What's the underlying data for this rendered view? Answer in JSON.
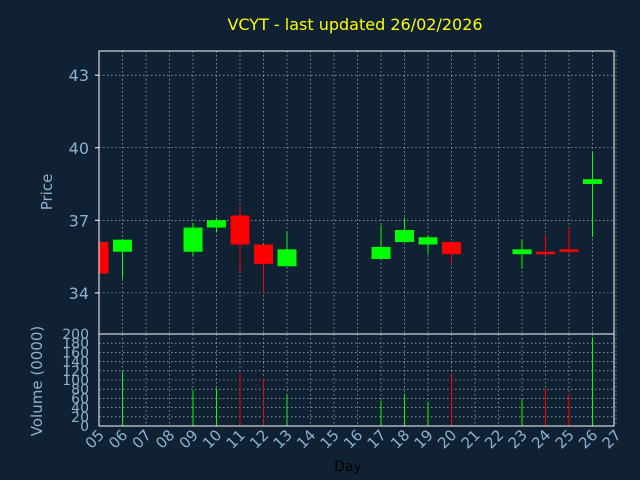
{
  "colors": {
    "background": "#0f2133",
    "frame": "#ffffff",
    "grid": "#ffffff",
    "title": "#ffff00",
    "axis_label": "#8fb0d0",
    "tick_label": "#8fb0d0",
    "x_label": "#000000",
    "up": "#00ff00",
    "down": "#ff0000"
  },
  "chart_data": [
    {
      "type": "candlestick",
      "title": "VCYT - last updated 26/02/2026",
      "ylabel": "Price",
      "ylim": [
        32.3,
        44.0
      ],
      "yticks": [
        34,
        37,
        40,
        43
      ],
      "grid": true,
      "x_ticks": [
        "05",
        "06",
        "07",
        "08",
        "09",
        "10",
        "11",
        "12",
        "13",
        "14",
        "15",
        "16",
        "17",
        "18",
        "19",
        "20",
        "21",
        "22",
        "23",
        "24",
        "25",
        "26",
        "27"
      ],
      "candles": [
        {
          "day": "05",
          "open": 36.1,
          "high": 36.1,
          "low": 34.8,
          "close": 34.8,
          "dir": "down"
        },
        {
          "day": "06",
          "open": 35.7,
          "high": 36.2,
          "low": 34.6,
          "close": 36.2,
          "dir": "up"
        },
        {
          "day": "09",
          "open": 35.7,
          "high": 36.9,
          "low": 35.5,
          "close": 36.7,
          "dir": "up"
        },
        {
          "day": "10",
          "open": 36.7,
          "high": 37.1,
          "low": 36.5,
          "close": 37.0,
          "dir": "up"
        },
        {
          "day": "11",
          "open": 37.2,
          "high": 37.6,
          "low": 34.9,
          "close": 36.0,
          "dir": "down"
        },
        {
          "day": "12",
          "open": 36.0,
          "high": 36.0,
          "low": 34.0,
          "close": 35.2,
          "dir": "down"
        },
        {
          "day": "13",
          "open": 35.1,
          "high": 36.5,
          "low": 35.1,
          "close": 35.8,
          "dir": "up"
        },
        {
          "day": "17",
          "open": 35.4,
          "high": 36.8,
          "low": 35.4,
          "close": 35.9,
          "dir": "up"
        },
        {
          "day": "18",
          "open": 36.1,
          "high": 37.1,
          "low": 36.1,
          "close": 36.6,
          "dir": "up"
        },
        {
          "day": "19",
          "open": 36.0,
          "high": 36.4,
          "low": 35.6,
          "close": 36.3,
          "dir": "up"
        },
        {
          "day": "20",
          "open": 36.1,
          "high": 36.1,
          "low": 35.2,
          "close": 35.6,
          "dir": "down"
        },
        {
          "day": "23",
          "open": 35.6,
          "high": 36.2,
          "low": 35.0,
          "close": 35.8,
          "dir": "up"
        },
        {
          "day": "24",
          "open": 35.7,
          "high": 36.4,
          "low": 35.6,
          "close": 35.7,
          "dir": "down"
        },
        {
          "day": "25",
          "open": 35.8,
          "high": 36.7,
          "low": 35.6,
          "close": 35.7,
          "dir": "down"
        },
        {
          "day": "26",
          "open": 38.5,
          "high": 39.8,
          "low": 36.3,
          "close": 38.7,
          "dir": "up"
        }
      ]
    },
    {
      "type": "bar",
      "ylabel": "Volume (0000)",
      "xlabel": "Day",
      "ylim": [
        0,
        200
      ],
      "yticks": [
        0,
        20,
        40,
        60,
        80,
        100,
        120,
        140,
        160,
        180,
        200
      ],
      "grid": true,
      "bars": [
        {
          "day": "05",
          "value": 0,
          "dir": "down"
        },
        {
          "day": "06",
          "value": 118,
          "dir": "up"
        },
        {
          "day": "09",
          "value": 78,
          "dir": "up"
        },
        {
          "day": "10",
          "value": 82,
          "dir": "up"
        },
        {
          "day": "11",
          "value": 116,
          "dir": "down"
        },
        {
          "day": "12",
          "value": 105,
          "dir": "down"
        },
        {
          "day": "13",
          "value": 70,
          "dir": "up"
        },
        {
          "day": "17",
          "value": 55,
          "dir": "up"
        },
        {
          "day": "18",
          "value": 70,
          "dir": "up"
        },
        {
          "day": "19",
          "value": 53,
          "dir": "up"
        },
        {
          "day": "20",
          "value": 115,
          "dir": "down"
        },
        {
          "day": "23",
          "value": 58,
          "dir": "up"
        },
        {
          "day": "24",
          "value": 80,
          "dir": "down"
        },
        {
          "day": "25",
          "value": 70,
          "dir": "down"
        },
        {
          "day": "26",
          "value": 193,
          "dir": "up"
        }
      ]
    }
  ]
}
